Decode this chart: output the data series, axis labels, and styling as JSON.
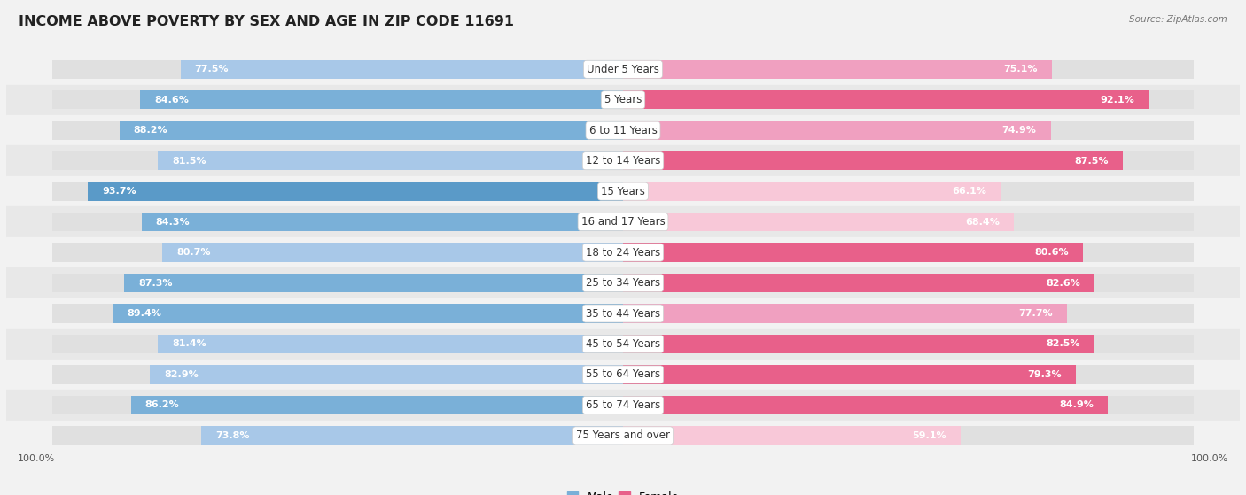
{
  "title": "INCOME ABOVE POVERTY BY SEX AND AGE IN ZIP CODE 11691",
  "source": "Source: ZipAtlas.com",
  "categories": [
    "Under 5 Years",
    "5 Years",
    "6 to 11 Years",
    "12 to 14 Years",
    "15 Years",
    "16 and 17 Years",
    "18 to 24 Years",
    "25 to 34 Years",
    "35 to 44 Years",
    "45 to 54 Years",
    "55 to 64 Years",
    "65 to 74 Years",
    "75 Years and over"
  ],
  "male_values": [
    77.5,
    84.6,
    88.2,
    81.5,
    93.7,
    84.3,
    80.7,
    87.3,
    89.4,
    81.4,
    82.9,
    86.2,
    73.8
  ],
  "female_values": [
    75.1,
    92.1,
    74.9,
    87.5,
    66.1,
    68.4,
    80.6,
    82.6,
    77.7,
    82.5,
    79.3,
    84.9,
    59.1
  ],
  "male_colors": [
    "#a8c8e8",
    "#7ab0d8",
    "#7ab0d8",
    "#a8c8e8",
    "#5a9ac8",
    "#7ab0d8",
    "#a8c8e8",
    "#7ab0d8",
    "#7ab0d8",
    "#a8c8e8",
    "#a8c8e8",
    "#7ab0d8",
    "#a8c8e8"
  ],
  "female_colors": [
    "#f0a0c0",
    "#e8608a",
    "#f0a0c0",
    "#e8608a",
    "#f8c8d8",
    "#f8c8d8",
    "#e8608a",
    "#e8608a",
    "#f0a0c0",
    "#e8608a",
    "#e8608a",
    "#e8608a",
    "#f8c8d8"
  ],
  "male_color_legend": "#7ab0d8",
  "female_color_legend": "#e8608a",
  "bg_color": "#f2f2f2",
  "bar_bg_color": "#e0e0e0",
  "row_bg_even": "#f2f2f2",
  "row_bg_odd": "#e8e8e8",
  "title_fontsize": 11.5,
  "label_fontsize": 8.5,
  "value_fontsize": 8.0,
  "axis_label_fontsize": 8.0,
  "legend_fontsize": 9.0
}
